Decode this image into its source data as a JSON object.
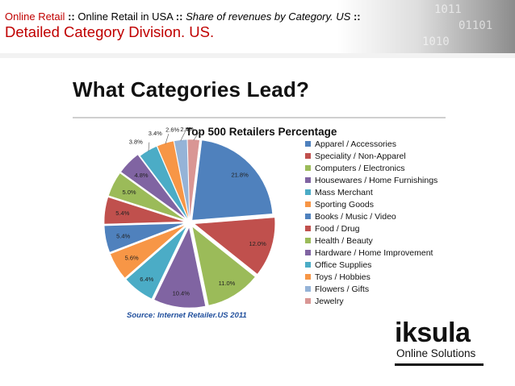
{
  "header": {
    "crumb_1": "Online Retail",
    "sep": "::",
    "crumb_2": "Online Retail in USA",
    "crumb_3": "Share of revenues by Category. US",
    "subtitle": "Detailed Category Division. US."
  },
  "slide": {
    "title": "What Categories Lead?",
    "source": "Source:  Internet Retailer.US 2011"
  },
  "logo": {
    "wordmark": "iksula",
    "tagline": "Online Solutions"
  },
  "chart_data": {
    "type": "pie",
    "title": "Top 500 Retailers Percentage",
    "legend_position": "right",
    "slices": [
      {
        "label": "Apparel / Accessories",
        "value": 21.8,
        "data_label": "21.8%",
        "color": "#4f81bd"
      },
      {
        "label": "Speciality / Non-Apparel",
        "value": 12.0,
        "data_label": "12.0%",
        "color": "#c0504d"
      },
      {
        "label": "Computers / Electronics",
        "value": 11.0,
        "data_label": "11.0%",
        "color": "#9bbb59"
      },
      {
        "label": "Housewares / Home Furnishings",
        "value": 10.4,
        "data_label": "10.4%",
        "color": "#8064a2"
      },
      {
        "label": "Mass Merchant",
        "value": 6.4,
        "data_label": "6.4%",
        "color": "#4bacc6"
      },
      {
        "label": "Sporting Goods",
        "value": 5.6,
        "data_label": "5.6%",
        "color": "#f79646"
      },
      {
        "label": "Books / Music / Video",
        "value": 5.4,
        "data_label": "5.4%",
        "color": "#4f81bd"
      },
      {
        "label": "Food / Drug",
        "value": 5.4,
        "data_label": "5.4%",
        "color": "#c0504d"
      },
      {
        "label": "Health / Beauty",
        "value": 5.0,
        "data_label": "5.0%",
        "color": "#9bbb59"
      },
      {
        "label": "Hardware / Home Improvement",
        "value": 4.8,
        "data_label": "4.8%",
        "color": "#8064a2"
      },
      {
        "label": "Office Supplies",
        "value": 3.8,
        "data_label": "3.8%",
        "color": "#4bacc6"
      },
      {
        "label": "Toys / Hobbies",
        "value": 3.4,
        "data_label": "3.4%",
        "color": "#f79646"
      },
      {
        "label": "Flowers / Gifts",
        "value": 2.6,
        "data_label": "2.6%",
        "color": "#95b3d7"
      },
      {
        "label": "Jewelry",
        "value": 2.4,
        "data_label": "2.4%",
        "color": "#d99694"
      }
    ]
  }
}
